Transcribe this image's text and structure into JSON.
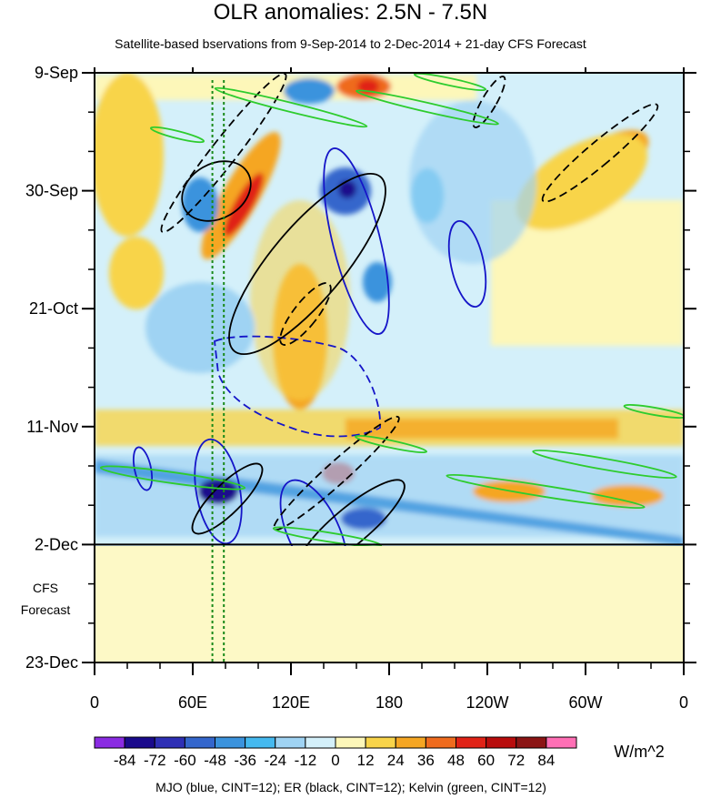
{
  "chart_data": {
    "type": "heatmap",
    "title": "OLR anomalies: 2.5N - 7.5N",
    "subtitle": "Satellite-based bservations from 9-Sep-2014 to 2-Dec-2014 + 21-day CFS Forecast",
    "x_ticks": [
      "0",
      "60E",
      "120E",
      "180",
      "120W",
      "60W",
      "0"
    ],
    "x_tick_degrees": [
      0,
      60,
      120,
      180,
      240,
      300,
      360
    ],
    "xlim": [
      0,
      360
    ],
    "y_ticks": [
      "9-Sep",
      "30-Sep",
      "21-Oct",
      "11-Nov",
      "2-Dec",
      "23-Dec"
    ],
    "y_tick_days": [
      0,
      21,
      42,
      63,
      84,
      105
    ],
    "ylim": [
      0,
      105
    ],
    "observation_end_day": 84,
    "forecast_label_line1": "CFS",
    "forecast_label_line2": "Forecast",
    "forecast_marker_lon": [
      72,
      79
    ],
    "colorbar": {
      "levels": [
        "-84",
        "-72",
        "-60",
        "-48",
        "-36",
        "-24",
        "-12",
        "0",
        "12",
        "24",
        "36",
        "48",
        "60",
        "72",
        "84"
      ],
      "colors": [
        "#8a2be2",
        "#1a0a8c",
        "#2e2fb5",
        "#3466cc",
        "#3b93dd",
        "#45b9ef",
        "#9fd3f3",
        "#d4f0fa",
        "#fdf7b9",
        "#f8d44a",
        "#f5a623",
        "#ef6b1e",
        "#e02216",
        "#b80c0c",
        "#8b1414",
        "#ff6fb5"
      ],
      "units": "W/m^2"
    },
    "legend": "MJO (blue, CINT=12); ER (black, CINT=12); Kelvin (green, CINT=12)"
  }
}
